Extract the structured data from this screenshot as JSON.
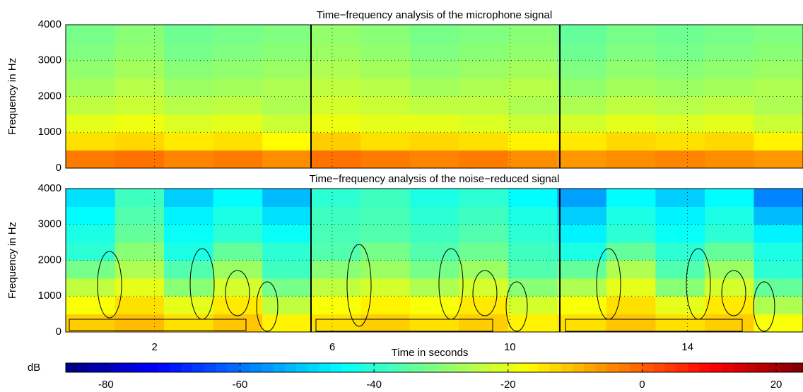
{
  "chart_data": [
    {
      "type": "heatmap",
      "title": "Time−frequency analysis of the microphone signal",
      "ylabel": "Frequency in Hz",
      "xlim": [
        0,
        16.6
      ],
      "xticks": [
        2,
        6,
        10,
        14
      ],
      "show_xticklabels": false,
      "ylim": [
        0,
        4000
      ],
      "yticks": [
        0,
        1000,
        2000,
        3000,
        4000
      ],
      "grid": true,
      "xbins": [
        0,
        1.107,
        2.213,
        3.32,
        4.427,
        5.533,
        6.64,
        7.747,
        8.853,
        9.96,
        11.067,
        12.173,
        13.28,
        14.387,
        15.493,
        16.6
      ],
      "ybins": [
        0,
        500,
        1000,
        1500,
        2000,
        2500,
        3000,
        3500,
        4000
      ],
      "z": [
        [
          -3,
          -2,
          -4,
          -3,
          -5,
          -2,
          -3,
          -4,
          -3,
          -5,
          -6,
          -5,
          -4,
          -5,
          -6
        ],
        [
          -14,
          -13,
          -15,
          -14,
          -17,
          -12,
          -14,
          -13,
          -14,
          -16,
          -15,
          -13,
          -14,
          -13,
          -16
        ],
        [
          -20,
          -19,
          -21,
          -20,
          -23,
          -19,
          -20,
          -20,
          -21,
          -23,
          -22,
          -20,
          -21,
          -20,
          -23
        ],
        [
          -24,
          -23,
          -25,
          -24,
          -26,
          -22,
          -23,
          -24,
          -24,
          -26,
          -26,
          -24,
          -25,
          -24,
          -26
        ],
        [
          -27,
          -25,
          -28,
          -27,
          -26,
          -24,
          -25,
          -27,
          -26,
          -25,
          -29,
          -27,
          -28,
          -27,
          -26
        ],
        [
          -29,
          -27,
          -30,
          -29,
          -28,
          -26,
          -27,
          -29,
          -28,
          -27,
          -31,
          -29,
          -30,
          -29,
          -28
        ],
        [
          -31,
          -29,
          -32,
          -31,
          -30,
          -28,
          -29,
          -31,
          -30,
          -29,
          -33,
          -31,
          -32,
          -31,
          -30
        ],
        [
          -32,
          -30,
          -33,
          -32,
          -31,
          -29,
          -30,
          -32,
          -31,
          -30,
          -34,
          -32,
          -33,
          -32,
          -31
        ]
      ]
    },
    {
      "type": "heatmap",
      "title": "Time−frequency analysis of the noise−reduced signal",
      "ylabel": "Frequency in Hz",
      "xlabel": "Time in seconds",
      "xlim": [
        0,
        16.6
      ],
      "xticks": [
        2,
        6,
        10,
        14
      ],
      "show_xticklabels": true,
      "ylim": [
        0,
        4000
      ],
      "yticks": [
        0,
        1000,
        2000,
        3000,
        4000
      ],
      "grid": true,
      "xbins": [
        0,
        1.107,
        2.213,
        3.32,
        4.427,
        5.533,
        6.64,
        7.747,
        8.853,
        9.96,
        11.067,
        12.173,
        13.28,
        14.387,
        15.493,
        16.6
      ],
      "ybins": [
        0,
        500,
        1000,
        1500,
        2000,
        2500,
        3000,
        3500,
        4000
      ],
      "z": [
        [
          -12,
          -10,
          -14,
          -11,
          -16,
          -14,
          -12,
          -14,
          -12,
          -16,
          -14,
          -11,
          -14,
          -12,
          -18
        ],
        [
          -18,
          -14,
          -20,
          -15,
          -24,
          -18,
          -16,
          -18,
          -15,
          -22,
          -18,
          -14,
          -20,
          -15,
          -26
        ],
        [
          -24,
          -20,
          -30,
          -22,
          -32,
          -24,
          -22,
          -26,
          -22,
          -30,
          -26,
          -20,
          -30,
          -22,
          -34
        ],
        [
          -32,
          -26,
          -36,
          -28,
          -38,
          -30,
          -28,
          -32,
          -28,
          -36,
          -34,
          -26,
          -36,
          -28,
          -40
        ],
        [
          -40,
          -30,
          -42,
          -34,
          -40,
          -36,
          -32,
          -36,
          -33,
          -38,
          -42,
          -34,
          -40,
          -34,
          -42
        ],
        [
          -42,
          -34,
          -44,
          -40,
          -44,
          -37,
          -36,
          -38,
          -36,
          -40,
          -46,
          -40,
          -44,
          -40,
          -46
        ],
        [
          -45,
          -36,
          -46,
          -42,
          -48,
          -38,
          -37,
          -40,
          -38,
          -42,
          -50,
          -42,
          -46,
          -42,
          -52
        ],
        [
          -48,
          -38,
          -50,
          -45,
          -52,
          -40,
          -38,
          -42,
          -40,
          -45,
          -55,
          -45,
          -50,
          -45,
          -58
        ]
      ]
    }
  ],
  "colorbar": {
    "label": "dB",
    "lim": [
      -86,
      24
    ],
    "ticks": [
      -80,
      -60,
      -40,
      -20,
      0,
      20
    ]
  }
}
